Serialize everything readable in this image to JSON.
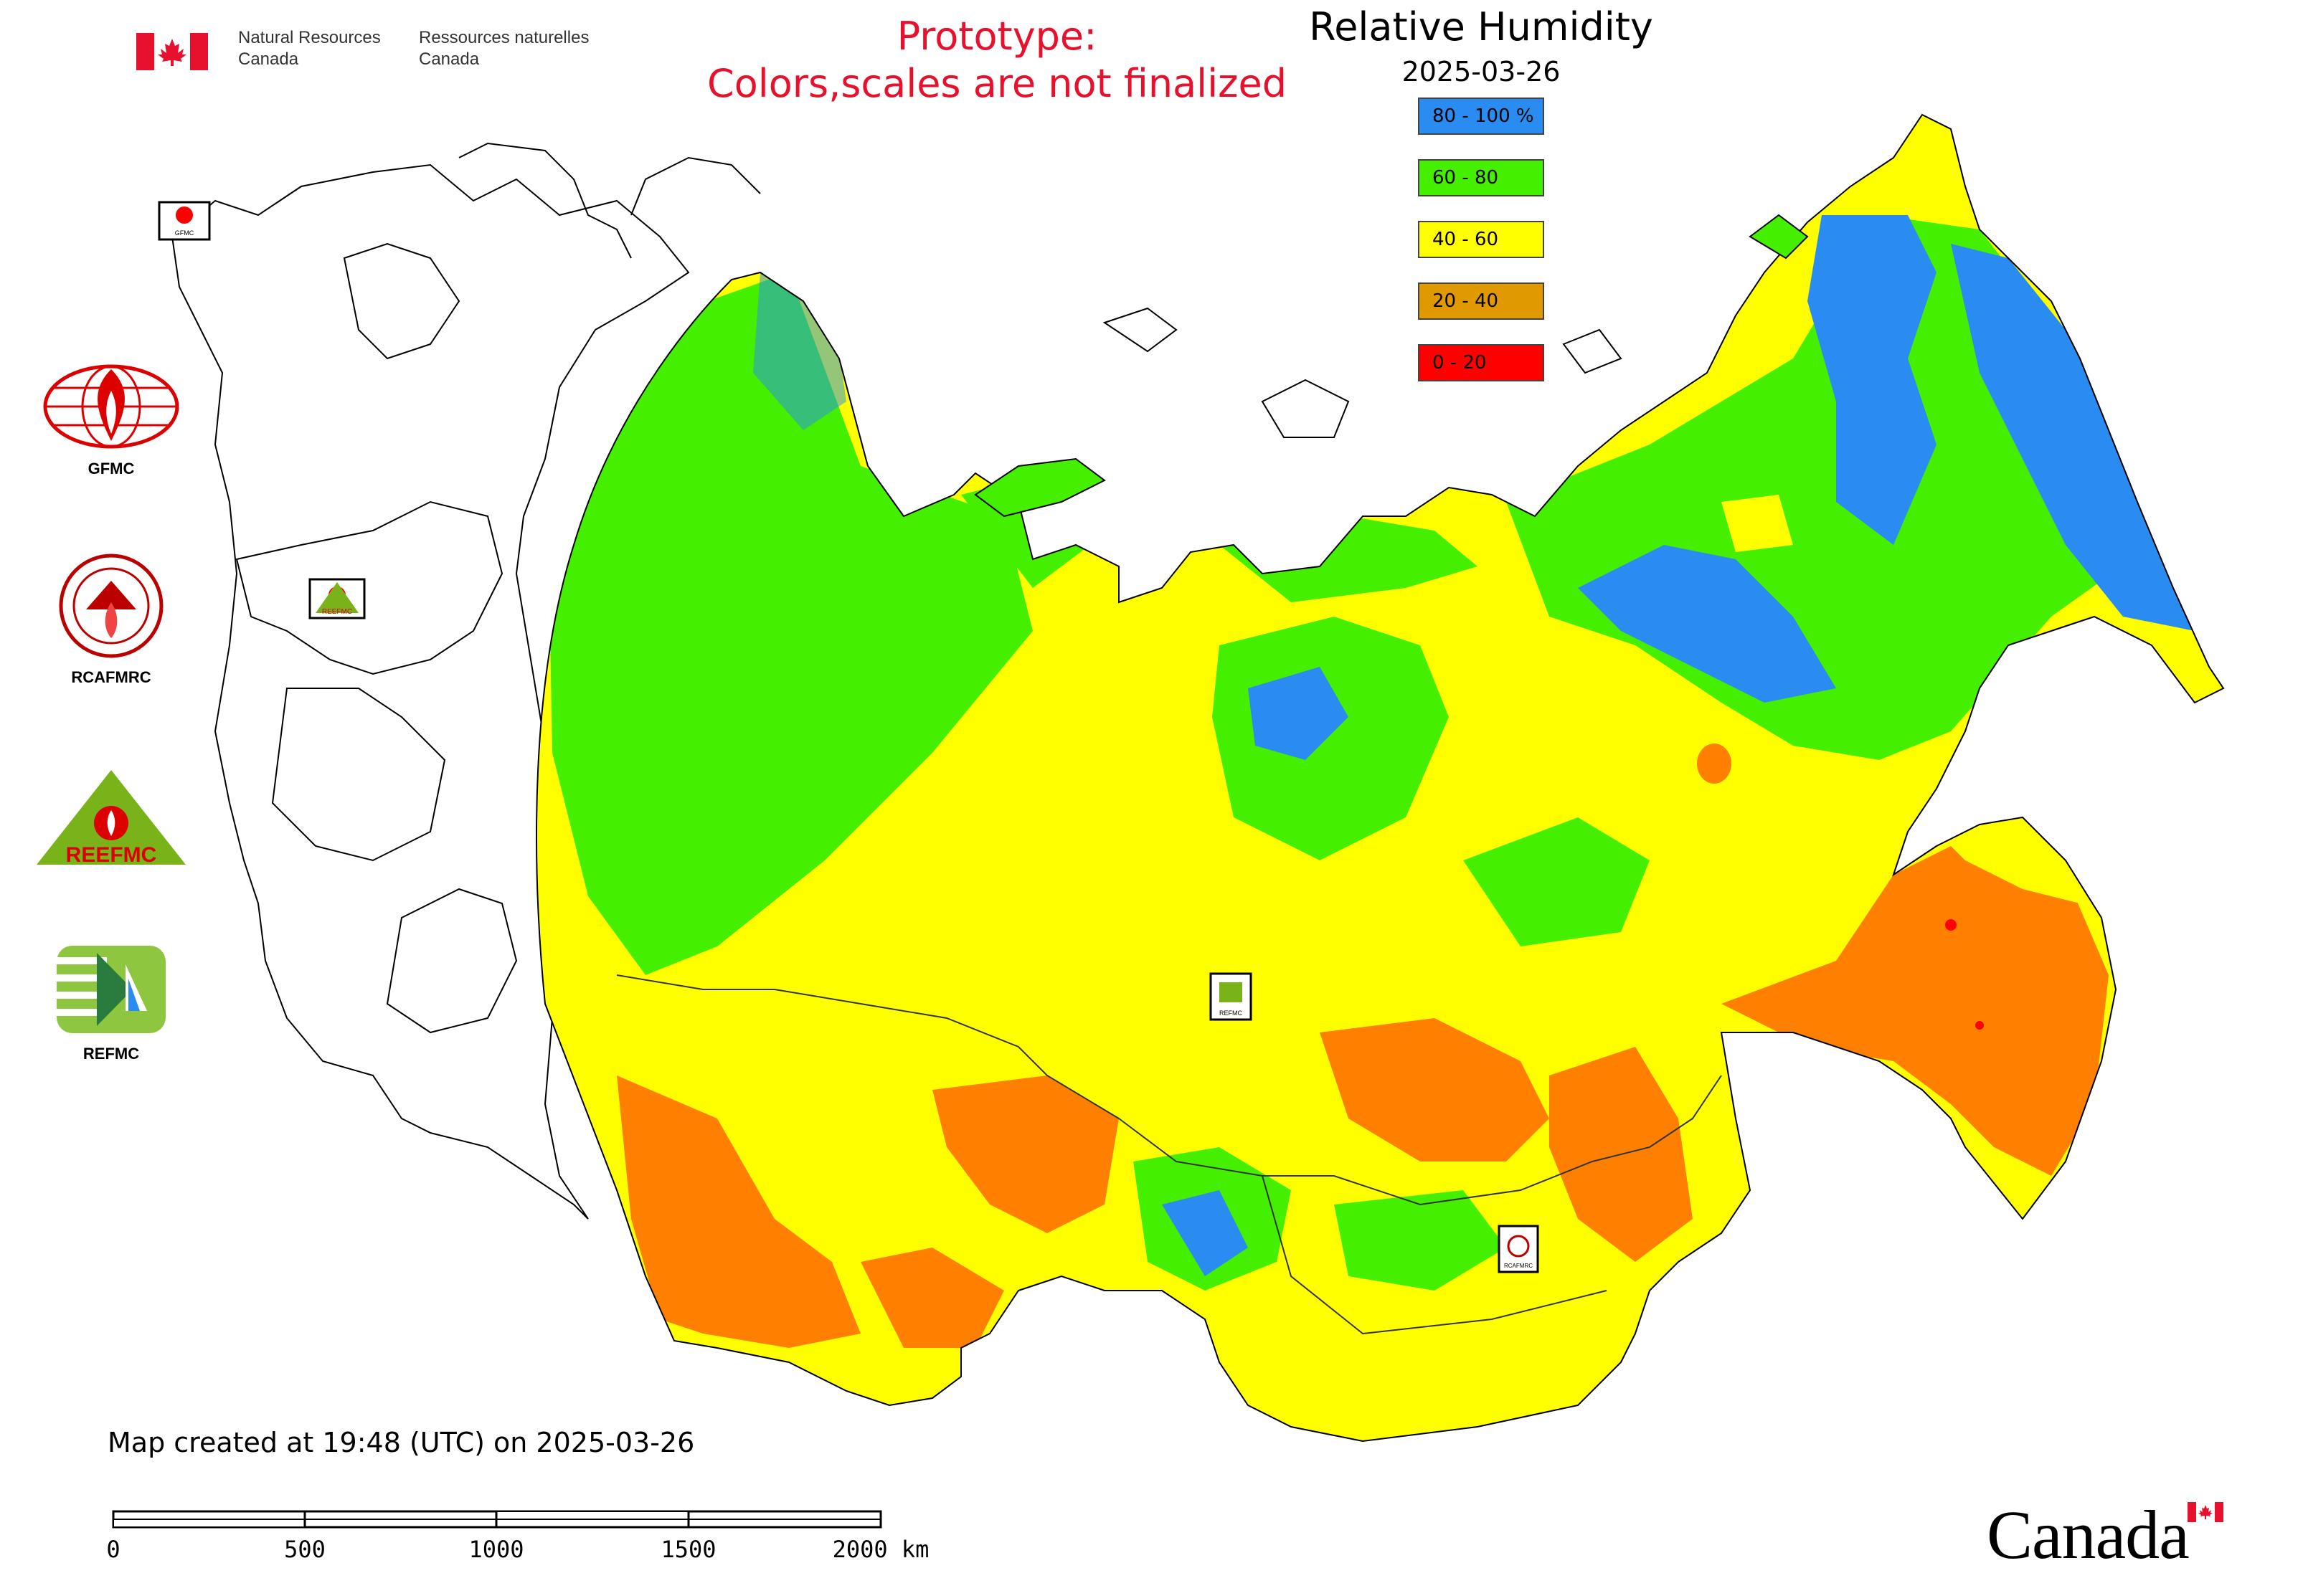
{
  "header": {
    "org_en_line1": "Natural Resources",
    "org_en_line2": "Canada",
    "org_fr_line1": "Ressources naturelles",
    "org_fr_line2": "Canada",
    "prototype_line1": "Prototype:",
    "prototype_line2": "Colors,scales are not finalized"
  },
  "legend": {
    "title": "Relative Humidity",
    "date": "2025-03-26",
    "items": [
      {
        "label": "80 - 100 %",
        "color": "#2a8cf0"
      },
      {
        "label": "60 - 80",
        "color": "#44f000"
      },
      {
        "label": "40 - 60",
        "color": "#ffff00"
      },
      {
        "label": "20 - 40",
        "color": "#e09a00"
      },
      {
        "label": "0 - 20",
        "color": "#ff0000"
      }
    ]
  },
  "map_colors": {
    "high": "#2a8cf0",
    "moist": "#44f000",
    "mid": "#ffff00",
    "dry": "#ff8000",
    "very_dry": "#ff0000",
    "outline": "#000000"
  },
  "logos": {
    "gfmc": "GFMC",
    "rcafmrc": "RCAFMRC",
    "reefmc": "REEFMC",
    "refmc": "REFMC",
    "reefmc_text": "REEFMC",
    "rcafmrc_badge": "RCAFMRC",
    "gfmc_badge": "GFMC",
    "refmc_badge": "REFMC",
    "reefmc_badge": "REEFMC",
    "rcafmrc_center_badge": "RCAFMRC"
  },
  "footer": {
    "created": "Map created at 19:48 (UTC) on 2025-03-26",
    "wordmark": "Canada",
    "scale_labels": [
      "0",
      "500",
      "1000",
      "1500",
      "2000 km"
    ]
  }
}
